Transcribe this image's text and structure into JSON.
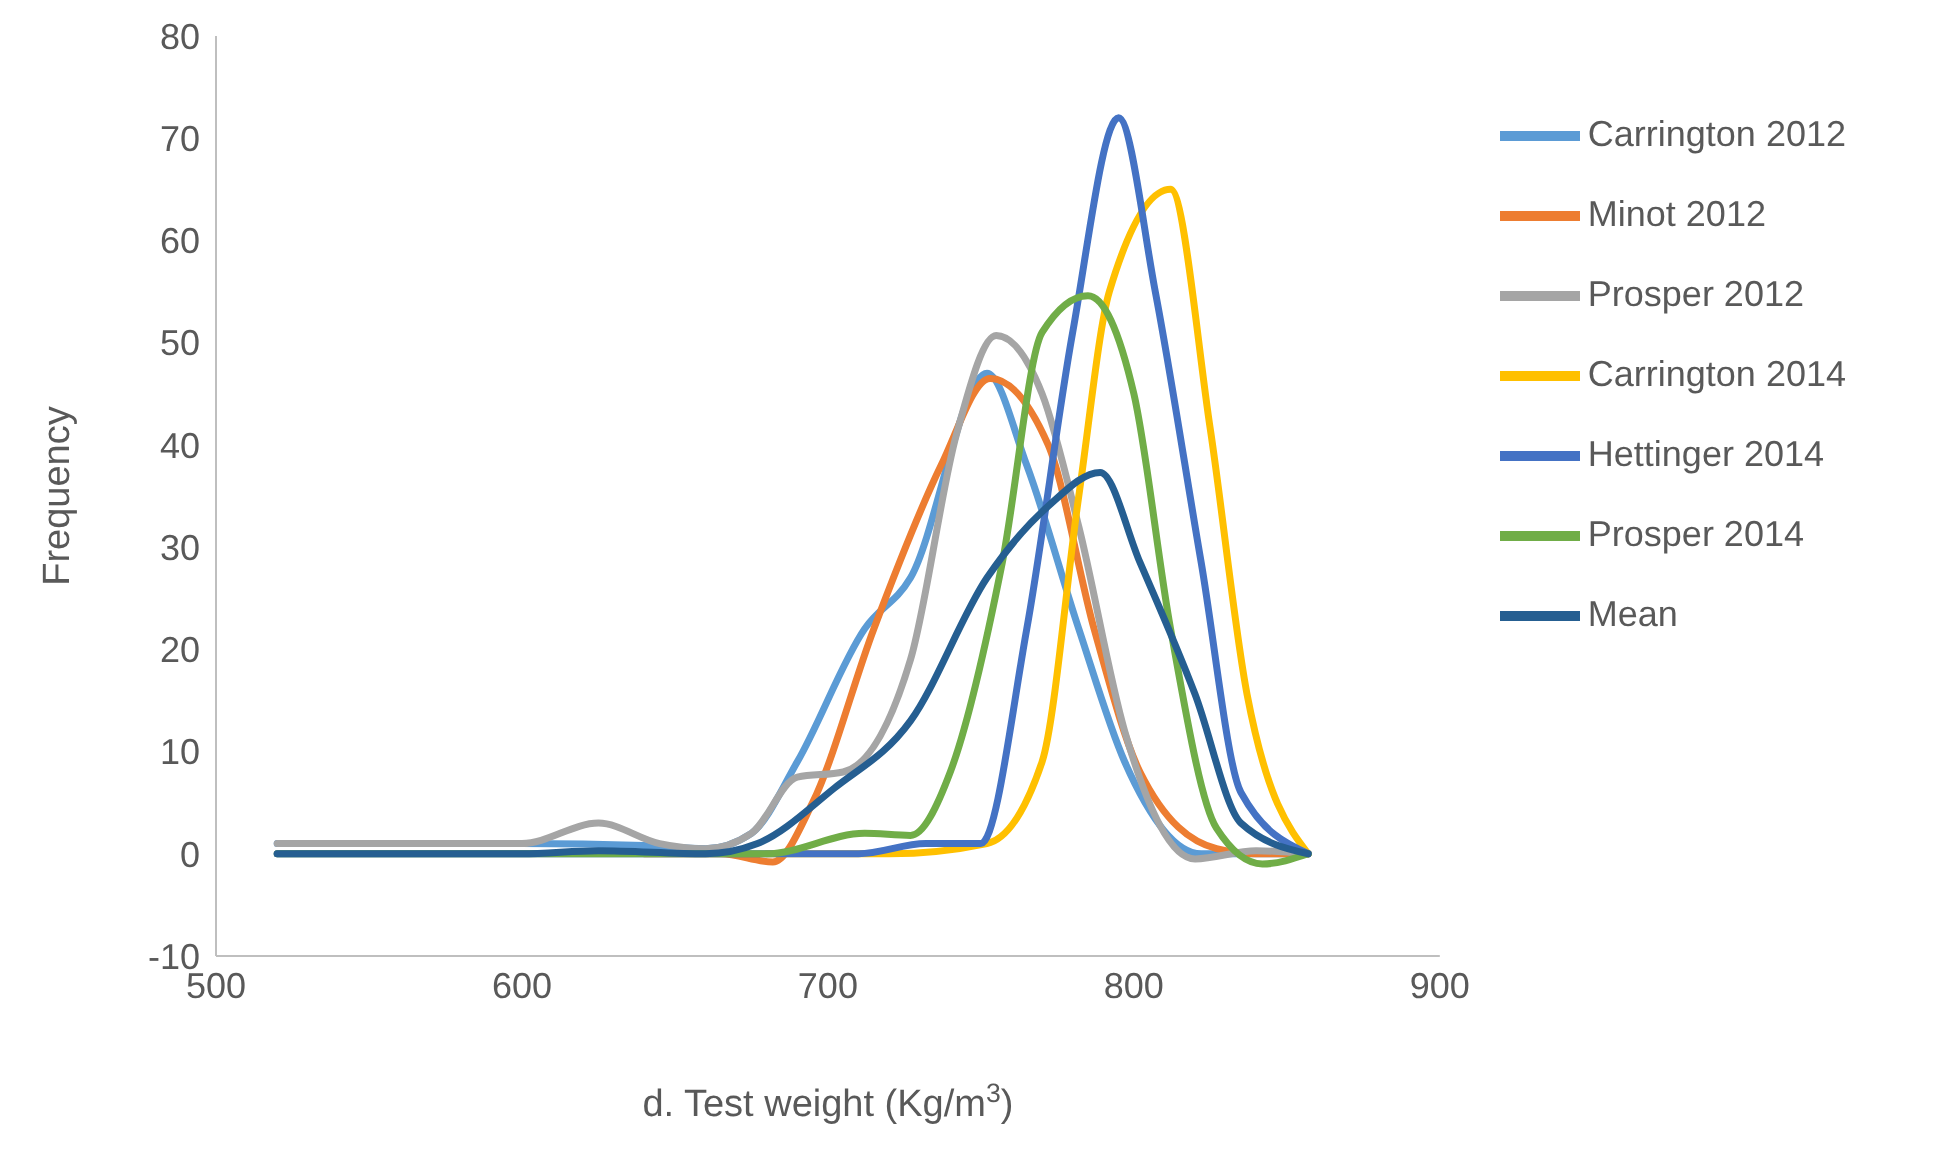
{
  "chart_data": {
    "type": "line",
    "xlabel": "d. Test weight (Kg/m$^{3}$)",
    "ylabel": "Frequency",
    "xlim": [
      500,
      900
    ],
    "xticks": [
      500,
      600,
      700,
      800,
      900
    ],
    "ylim": [
      -10,
      80
    ],
    "yticks": [
      -10,
      0,
      10,
      20,
      30,
      40,
      50,
      60,
      70,
      80
    ],
    "grid": false,
    "legend": "right",
    "marker": "none",
    "line_style": "solid",
    "series": [
      {
        "name": "Carrington 2012",
        "color": "#5b9bd5",
        "x": [
          520,
          560,
          600,
          640,
          660,
          675,
          690,
          712,
          727,
          752,
          765,
          782,
          797,
          822,
          840,
          857
        ],
        "values": [
          1,
          1,
          1,
          0.8,
          0.5,
          2,
          9,
          22,
          27,
          47,
          38,
          22,
          9,
          0,
          0,
          0
        ]
      },
      {
        "name": "Minot 2012",
        "color": "#ed7d31",
        "x": [
          640,
          665,
          682,
          695,
          715,
          737,
          753,
          772,
          787,
          802,
          827,
          840,
          857
        ],
        "values": [
          0,
          0,
          -0.8,
          5,
          22,
          38,
          46.5,
          40,
          22,
          8,
          0.5,
          0,
          0
        ]
      },
      {
        "name": "Prosper 2012",
        "color": "#a5a5a5",
        "x": [
          520,
          560,
          600,
          625,
          645,
          660,
          675,
          690,
          705,
          727,
          742,
          755,
          770,
          782,
          797,
          820,
          840,
          857
        ],
        "values": [
          1,
          1,
          1,
          3,
          1,
          0.5,
          2,
          7.5,
          8,
          19,
          41,
          50.7,
          45,
          32,
          12,
          -0.5,
          0.3,
          0
        ]
      },
      {
        "name": "Carrington 2014",
        "color": "#ffc000",
        "x": [
          680,
          720,
          752,
          770,
          782,
          792,
          812,
          825,
          837,
          857
        ],
        "values": [
          0,
          0,
          1,
          9,
          35,
          55,
          65,
          41.5,
          15.6,
          0
        ]
      },
      {
        "name": "Hettinger 2014",
        "color": "#4472c4",
        "x": [
          520,
          600,
          680,
          710,
          732,
          750,
          765,
          780,
          795,
          807,
          822,
          835,
          857
        ],
        "values": [
          0,
          0,
          0,
          0,
          1,
          1,
          22,
          51,
          72,
          55,
          28.5,
          6,
          0
        ]
      },
      {
        "name": "Prosper 2014",
        "color": "#70ad47",
        "x": [
          520,
          600,
          680,
          712,
          727,
          740,
          757,
          770,
          785,
          800,
          812,
          827,
          842,
          857
        ],
        "values": [
          0,
          0,
          0,
          2,
          1.8,
          8,
          28.5,
          51,
          54.6,
          45,
          22,
          2.5,
          -1,
          0
        ]
      },
      {
        "name": "Mean",
        "color": "#255e91",
        "x": [
          520,
          600,
          625,
          660,
          677,
          702,
          727,
          752,
          772,
          789,
          802,
          820,
          835,
          857
        ],
        "values": [
          0,
          0,
          0.3,
          0,
          1,
          6.4,
          13,
          27,
          34,
          37.3,
          28.5,
          15.6,
          3,
          0
        ]
      }
    ]
  }
}
